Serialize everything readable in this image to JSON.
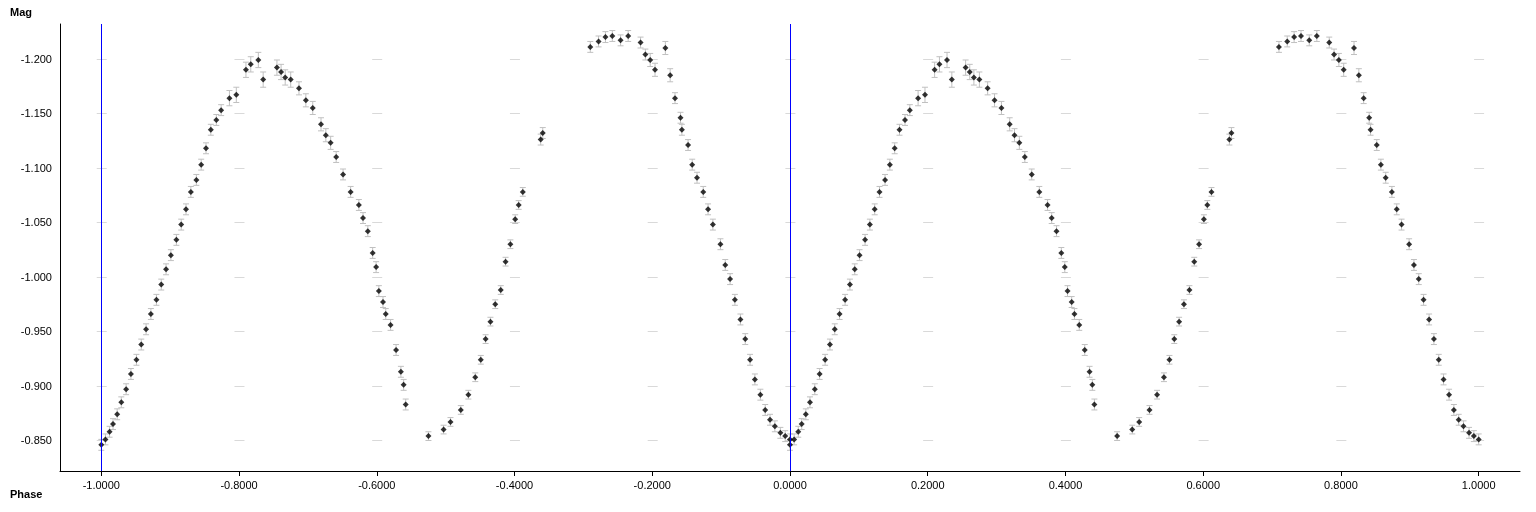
{
  "chart_data": {
    "type": "scatter",
    "xlabel": "Phase",
    "ylabel": "Mag",
    "marker": "diamond",
    "grid": "y",
    "xlim": [
      -1.06,
      1.06
    ],
    "ylim": [
      -0.822,
      -1.232
    ],
    "xticks": [
      {
        "value": -1,
        "label": "-1.0000"
      },
      {
        "value": -0.8,
        "label": "-0.8000"
      },
      {
        "value": -0.6,
        "label": "-0.6000"
      },
      {
        "value": -0.4,
        "label": "-0.4000"
      },
      {
        "value": -0.2,
        "label": "-0.2000"
      },
      {
        "value": 0,
        "label": "0.0000"
      },
      {
        "value": 0.2,
        "label": "0.2000"
      },
      {
        "value": 0.4,
        "label": "0.4000"
      },
      {
        "value": 0.6,
        "label": "0.6000"
      },
      {
        "value": 0.8,
        "label": "0.8000"
      },
      {
        "value": 1,
        "label": "1.0000"
      }
    ],
    "yticks": [
      {
        "value": -1.2,
        "label": "-1.200"
      },
      {
        "value": -1.15,
        "label": "-1.150"
      },
      {
        "value": -1.1,
        "label": "-1.100"
      },
      {
        "value": -1.05,
        "label": "-1.050"
      },
      {
        "value": -1,
        "label": "-1.000"
      },
      {
        "value": -0.95,
        "label": "-0.950"
      },
      {
        "value": -0.9,
        "label": "-0.900"
      },
      {
        "value": -0.85,
        "label": "-0.850"
      }
    ],
    "ref_lines": [
      {
        "axis": "x",
        "value": -1,
        "color": "#0000ff"
      },
      {
        "axis": "x",
        "value": 0,
        "color": "#0000ff"
      }
    ],
    "series": [
      {
        "color": "#000000",
        "x": [
          -1.0,
          -0.994,
          -0.988,
          -0.983,
          -0.977,
          -0.971,
          -0.964,
          -0.957,
          -0.949,
          -0.942,
          -0.935,
          -0.928,
          -0.92,
          -0.913,
          -0.906,
          -0.899,
          -0.891,
          -0.884,
          -0.877,
          -0.87,
          -0.862,
          -0.855,
          -0.848,
          -0.841,
          -0.833,
          -0.826,
          -0.814,
          -0.804,
          -0.79,
          -0.783,
          -0.772,
          -0.765,
          -0.745,
          -0.739,
          -0.733,
          -0.725,
          -0.713,
          -0.703,
          -0.693,
          -0.681,
          -0.674,
          -0.667,
          -0.659,
          -0.649,
          -0.638,
          -0.626,
          -0.62,
          -0.613,
          -0.606,
          -0.601,
          -0.597,
          -0.591,
          -0.587,
          -0.58,
          -0.572,
          -0.565,
          -0.561,
          -0.558,
          -0.525,
          -0.503,
          -0.493,
          -0.478,
          -0.467,
          -0.457,
          -0.449,
          -0.442,
          -0.435,
          -0.428,
          -0.42,
          -0.413,
          -0.406,
          -0.399,
          -0.394,
          -0.388,
          -0.362,
          -0.359,
          -0.29,
          -0.278,
          -0.268,
          -0.258,
          -0.246,
          -0.235,
          -0.217,
          -0.21,
          -0.203,
          -0.196,
          -0.181,
          -0.174,
          -0.167,
          -0.159,
          -0.157,
          -0.148,
          -0.142,
          -0.135,
          -0.126,
          -0.119,
          -0.112,
          -0.101,
          -0.094,
          -0.087,
          -0.08,
          -0.072,
          -0.065,
          -0.058,
          -0.051,
          -0.043,
          -0.036,
          -0.029,
          -0.022,
          -0.014,
          -0.007,
          0,
          0,
          0.006,
          0.012,
          0.017,
          0.023,
          0.029,
          0.036,
          0.043,
          0.051,
          0.058,
          0.065,
          0.072,
          0.08,
          0.087,
          0.094,
          0.101,
          0.109,
          0.116,
          0.123,
          0.13,
          0.138,
          0.145,
          0.152,
          0.159,
          0.167,
          0.174,
          0.186,
          0.196,
          0.21,
          0.217,
          0.228,
          0.235,
          0.255,
          0.261,
          0.267,
          0.275,
          0.287,
          0.297,
          0.307,
          0.319,
          0.326,
          0.333,
          0.341,
          0.351,
          0.362,
          0.374,
          0.38,
          0.387,
          0.394,
          0.399,
          0.403,
          0.409,
          0.413,
          0.42,
          0.428,
          0.435,
          0.439,
          0.442,
          0.475,
          0.497,
          0.507,
          0.522,
          0.533,
          0.543,
          0.551,
          0.558,
          0.565,
          0.572,
          0.58,
          0.587,
          0.594,
          0.601,
          0.606,
          0.612,
          0.638,
          0.641,
          0.71,
          0.722,
          0.732,
          0.742,
          0.754,
          0.765,
          0.783,
          0.79,
          0.797,
          0.804,
          0.819,
          0.826,
          0.833,
          0.841,
          0.843,
          0.852,
          0.858,
          0.865,
          0.874,
          0.881,
          0.888,
          0.899,
          0.906,
          0.913,
          0.92,
          0.928,
          0.935,
          0.942,
          0.949,
          0.957,
          0.964,
          0.971,
          0.978,
          0.986,
          0.993,
          1.0
        ],
        "values": [
          -0.846,
          -0.851,
          -0.858,
          -0.865,
          -0.874,
          -0.885,
          -0.897,
          -0.911,
          -0.924,
          -0.938,
          -0.952,
          -0.966,
          -0.979,
          -0.993,
          -1.007,
          -1.02,
          -1.034,
          -1.048,
          -1.062,
          -1.078,
          -1.089,
          -1.103,
          -1.118,
          -1.135,
          -1.144,
          -1.153,
          -1.164,
          -1.167,
          -1.19,
          -1.195,
          -1.199,
          -1.181,
          -1.192,
          -1.188,
          -1.183,
          -1.181,
          -1.173,
          -1.162,
          -1.155,
          -1.14,
          -1.13,
          -1.123,
          -1.11,
          -1.094,
          -1.078,
          -1.066,
          -1.054,
          -1.042,
          -1.022,
          -1.009,
          -0.987,
          -0.977,
          -0.966,
          -0.956,
          -0.933,
          -0.913,
          -0.901,
          -0.883,
          -0.854,
          -0.86,
          -0.867,
          -0.878,
          -0.892,
          -0.908,
          -0.924,
          -0.943,
          -0.959,
          -0.975,
          -0.988,
          -1.014,
          -1.03,
          -1.053,
          -1.066,
          -1.078,
          -1.126,
          -1.132,
          -1.211,
          -1.216,
          -1.22,
          -1.221,
          -1.217,
          -1.221,
          -1.215,
          -1.204,
          -1.199,
          -1.19,
          -1.21,
          -1.185,
          -1.164,
          -1.146,
          -1.135,
          -1.121,
          -1.103,
          -1.091,
          -1.078,
          -1.062,
          -1.048,
          -1.03,
          -1.011,
          -0.998,
          -0.979,
          -0.961,
          -0.943,
          -0.924,
          -0.906,
          -0.892,
          -0.878,
          -0.869,
          -0.863,
          -0.857,
          -0.854,
          -0.851,
          -0.846,
          -0.851,
          -0.858,
          -0.865,
          -0.874,
          -0.885,
          -0.897,
          -0.911,
          -0.924,
          -0.938,
          -0.952,
          -0.966,
          -0.979,
          -0.993,
          -1.007,
          -1.02,
          -1.034,
          -1.048,
          -1.062,
          -1.078,
          -1.089,
          -1.103,
          -1.118,
          -1.135,
          -1.144,
          -1.153,
          -1.164,
          -1.167,
          -1.19,
          -1.195,
          -1.199,
          -1.181,
          -1.192,
          -1.188,
          -1.183,
          -1.181,
          -1.173,
          -1.162,
          -1.155,
          -1.14,
          -1.13,
          -1.123,
          -1.11,
          -1.094,
          -1.078,
          -1.066,
          -1.054,
          -1.042,
          -1.022,
          -1.009,
          -0.987,
          -0.977,
          -0.966,
          -0.956,
          -0.933,
          -0.913,
          -0.901,
          -0.883,
          -0.854,
          -0.86,
          -0.867,
          -0.878,
          -0.892,
          -0.908,
          -0.924,
          -0.943,
          -0.959,
          -0.975,
          -0.988,
          -1.014,
          -1.03,
          -1.053,
          -1.066,
          -1.078,
          -1.126,
          -1.132,
          -1.211,
          -1.216,
          -1.22,
          -1.221,
          -1.217,
          -1.221,
          -1.215,
          -1.204,
          -1.199,
          -1.19,
          -1.21,
          -1.185,
          -1.164,
          -1.146,
          -1.135,
          -1.121,
          -1.103,
          -1.091,
          -1.078,
          -1.062,
          -1.048,
          -1.03,
          -1.011,
          -0.998,
          -0.979,
          -0.961,
          -0.943,
          -0.924,
          -0.906,
          -0.892,
          -0.878,
          -0.869,
          -0.863,
          -0.857,
          -0.854,
          -0.851
        ],
        "errors": [
          0.005,
          0.005,
          0.005,
          0.005,
          0.005,
          0.005,
          0.005,
          0.005,
          0.005,
          0.005,
          0.005,
          0.005,
          0.005,
          0.005,
          0.005,
          0.005,
          0.005,
          0.005,
          0.005,
          0.005,
          0.005,
          0.005,
          0.005,
          0.005,
          0.005,
          0.005,
          0.007,
          0.007,
          0.007,
          0.007,
          0.007,
          0.007,
          0.007,
          0.007,
          0.007,
          0.007,
          0.006,
          0.006,
          0.006,
          0.006,
          0.006,
          0.006,
          0.005,
          0.005,
          0.005,
          0.005,
          0.005,
          0.005,
          0.005,
          0.005,
          0.005,
          0.005,
          0.005,
          0.005,
          0.005,
          0.005,
          0.005,
          0.005,
          0.004,
          0.004,
          0.004,
          0.004,
          0.004,
          0.004,
          0.004,
          0.004,
          0.004,
          0.004,
          0.004,
          0.004,
          0.004,
          0.004,
          0.004,
          0.004,
          0.005,
          0.005,
          0.005,
          0.005,
          0.005,
          0.005,
          0.005,
          0.005,
          0.005,
          0.005,
          0.006,
          0.006,
          0.006,
          0.006,
          0.005,
          0.005,
          0.005,
          0.005,
          0.005,
          0.005,
          0.005,
          0.005,
          0.005,
          0.005,
          0.005,
          0.005,
          0.005,
          0.005,
          0.005,
          0.005,
          0.005,
          0.005,
          0.005,
          0.005,
          0.005,
          0.005,
          0.005,
          0.005,
          0.005,
          0.005,
          0.005,
          0.005,
          0.005,
          0.005,
          0.005,
          0.005,
          0.005,
          0.005,
          0.005,
          0.005,
          0.005,
          0.005,
          0.005,
          0.005,
          0.005,
          0.005,
          0.005,
          0.005,
          0.005,
          0.005,
          0.005,
          0.005,
          0.005,
          0.005,
          0.007,
          0.007,
          0.007,
          0.007,
          0.007,
          0.007,
          0.007,
          0.007,
          0.007,
          0.007,
          0.006,
          0.006,
          0.006,
          0.006,
          0.006,
          0.006,
          0.005,
          0.005,
          0.005,
          0.005,
          0.005,
          0.005,
          0.005,
          0.005,
          0.005,
          0.005,
          0.005,
          0.005,
          0.005,
          0.005,
          0.005,
          0.005,
          0.004,
          0.004,
          0.004,
          0.004,
          0.004,
          0.004,
          0.004,
          0.004,
          0.004,
          0.004,
          0.004,
          0.004,
          0.004,
          0.004,
          0.004,
          0.004,
          0.005,
          0.005,
          0.005,
          0.005,
          0.005,
          0.005,
          0.005,
          0.005,
          0.005,
          0.005,
          0.006,
          0.006,
          0.006,
          0.006,
          0.005,
          0.005,
          0.005,
          0.005,
          0.005,
          0.005,
          0.005,
          0.005,
          0.005,
          0.005,
          0.005,
          0.005,
          0.005,
          0.005,
          0.005,
          0.005,
          0.005,
          0.005,
          0.005,
          0.005,
          0.005,
          0.005,
          0.005,
          0.005
        ]
      }
    ]
  }
}
